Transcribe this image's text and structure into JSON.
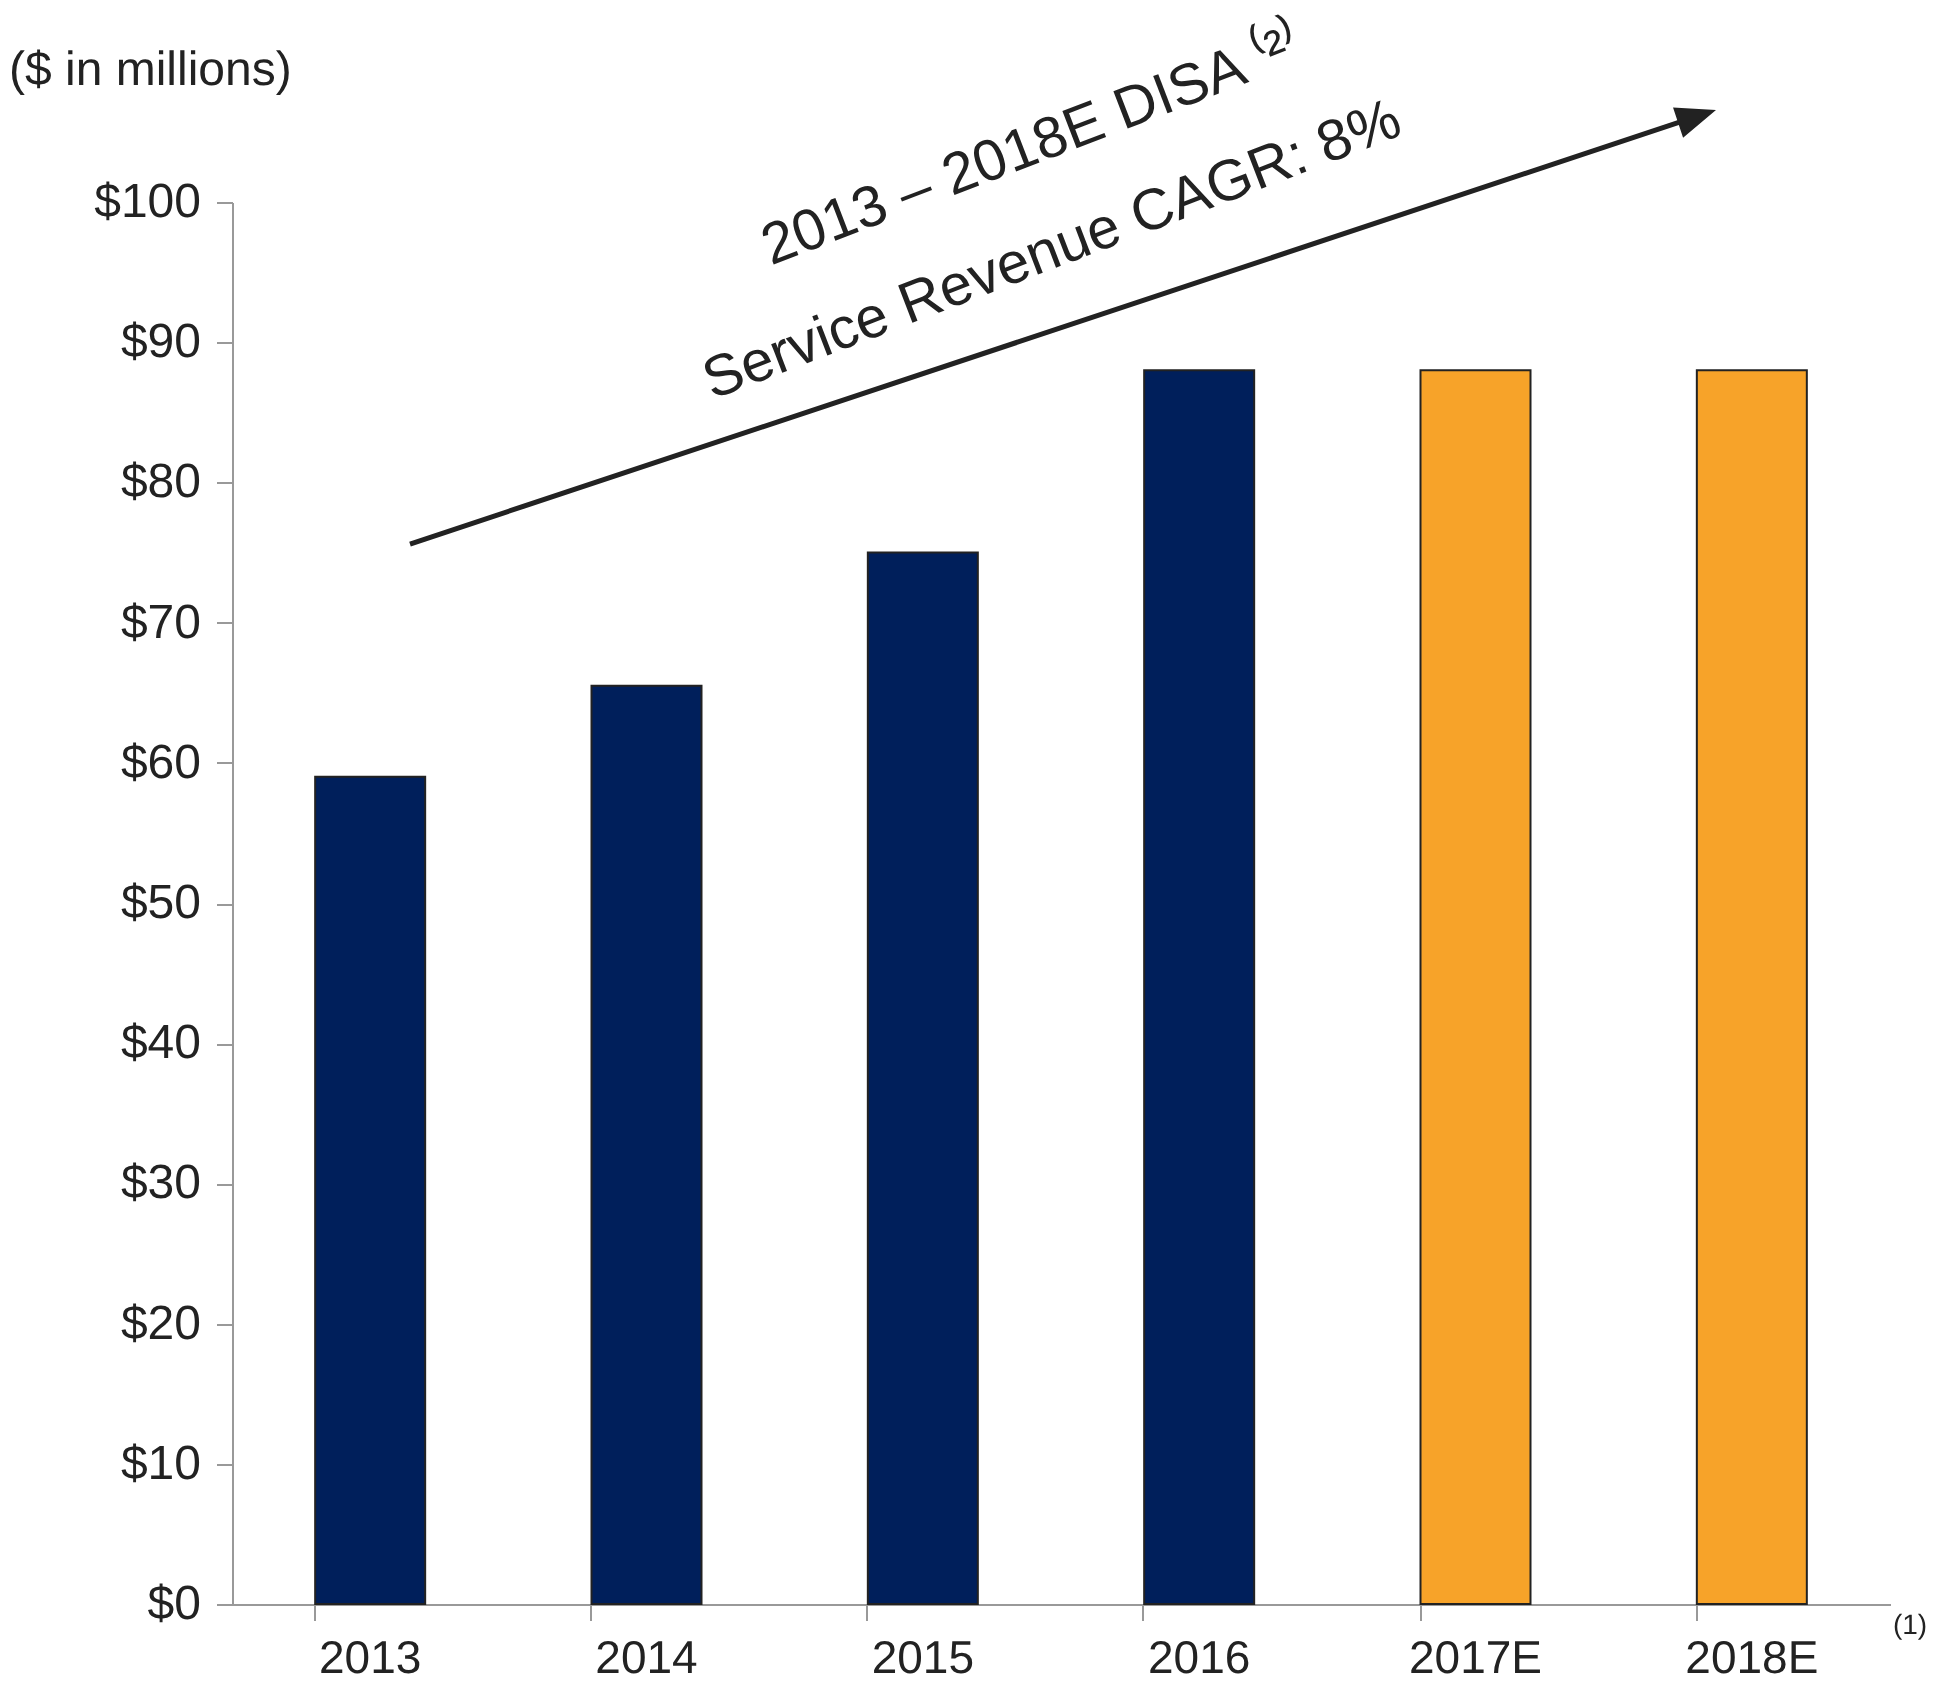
{
  "chart_data": {
    "type": "bar",
    "ylabel": "($ in millions)",
    "categories": [
      "2013",
      "2014",
      "2015",
      "2016",
      "2017E",
      "2018E"
    ],
    "values": [
      59,
      65.5,
      75,
      88,
      88,
      88
    ],
    "colors": [
      "#001f5b",
      "#001f5b",
      "#001f5b",
      "#001f5b",
      "#f7a329",
      "#f7a329"
    ],
    "ylim": [
      0,
      100
    ],
    "yticks": [
      {
        "value": 0,
        "label": "$0"
      },
      {
        "value": 10,
        "label": "$10"
      },
      {
        "value": 20,
        "label": "$20"
      },
      {
        "value": 30,
        "label": "$30"
      },
      {
        "value": 40,
        "label": "$40"
      },
      {
        "value": 50,
        "label": "$50"
      },
      {
        "value": 60,
        "label": "$60"
      },
      {
        "value": 70,
        "label": "$70"
      },
      {
        "value": 80,
        "label": "$80"
      },
      {
        "value": 90,
        "label": "$90"
      },
      {
        "value": 100,
        "label": "$100"
      }
    ],
    "annotations": [
      "2013 – 2018E DISA ⁽²⁾",
      "Service Revenue CAGR: 8%",
      "(1)"
    ],
    "grid": false
  }
}
